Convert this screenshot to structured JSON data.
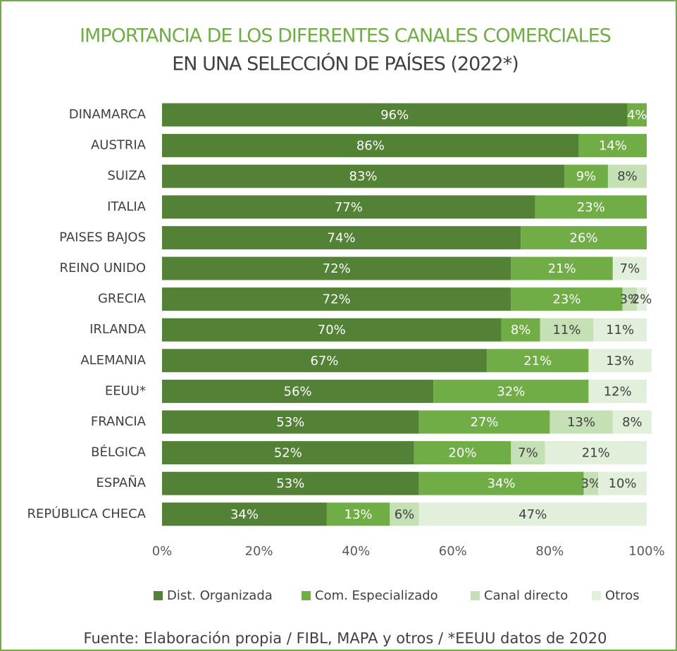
{
  "chart_data": {
    "type": "stacked-bar-horizontal",
    "title": "IMPORTANCIA DE LOS DIFERENTES CANALES COMERCIALES",
    "subtitle": "EN UNA SELECCIÓN DE PAÍSES (2022*)",
    "source": "Fuente: Elaboración propia / FIBL, MAPA y otros / *EEUU  datos de 2020",
    "categories": [
      "DINAMARCA",
      "AUSTRIA",
      "SUIZA",
      "ITALIA",
      "PAISES BAJOS",
      "REINO UNIDO",
      "GRECIA",
      "IRLANDA",
      "ALEMANIA",
      "EEUU*",
      "FRANCIA",
      "BÉLGICA",
      "ESPAÑA",
      "REPÚBLICA CHECA"
    ],
    "series": [
      {
        "name": "Dist. Organizada",
        "color": "#538135",
        "label_color": "#ffffff",
        "values": [
          96,
          86,
          83,
          77,
          74,
          72,
          72,
          70,
          67,
          56,
          53,
          52,
          53,
          34
        ],
        "value_labels": [
          "96%",
          "86%",
          "83%",
          "77%",
          "74%",
          "72%",
          "72%",
          "70%",
          "67%",
          "56%",
          "53%",
          "52%",
          "53%",
          "34%"
        ]
      },
      {
        "name": "Com. Especializado",
        "color": "#70ad47",
        "label_color": "#ffffff",
        "values": [
          4,
          14,
          9,
          23,
          26,
          21,
          23,
          8,
          21,
          32,
          27,
          20,
          34,
          13
        ],
        "value_labels": [
          "4%",
          "14%",
          "9%",
          "23%",
          "26%",
          "21%",
          "23%",
          "8%",
          "21%",
          "32%",
          "27%",
          "20%",
          "34%",
          "13%"
        ]
      },
      {
        "name": "Canal directo",
        "color": "#c5e0b4",
        "label_color": "#404040",
        "values": [
          null,
          null,
          8,
          null,
          null,
          null,
          3,
          11,
          null,
          null,
          13,
          7,
          3,
          6
        ],
        "value_labels": [
          null,
          null,
          "8%",
          null,
          null,
          null,
          "3%",
          "11%",
          null,
          null,
          "13%",
          "7%",
          "3%",
          "6%"
        ]
      },
      {
        "name": "Otros",
        "color": "#e2efda",
        "label_color": "#404040",
        "values": [
          null,
          null,
          null,
          null,
          null,
          7,
          2,
          11,
          13,
          12,
          8,
          21,
          10,
          47
        ],
        "value_labels": [
          null,
          null,
          null,
          null,
          null,
          "7%",
          "2%",
          "11%",
          "13%",
          "12%",
          "8%",
          "21%",
          "10%",
          "47%"
        ]
      }
    ],
    "xlim": [
      0,
      100
    ],
    "xticks": [
      {
        "value": 0,
        "label": "0%"
      },
      {
        "value": 20,
        "label": "20%"
      },
      {
        "value": 40,
        "label": "40%"
      },
      {
        "value": 60,
        "label": "60%"
      },
      {
        "value": 80,
        "label": "80%"
      },
      {
        "value": 100,
        "label": "100%"
      }
    ],
    "legend": "bottom"
  }
}
